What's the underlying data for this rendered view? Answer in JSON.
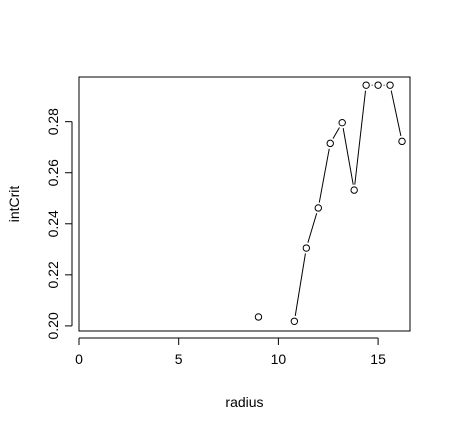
{
  "chart_data": {
    "type": "scatter",
    "title": "",
    "xlabel": "radius",
    "ylabel": "intCrit",
    "xlim": [
      0,
      16.6
    ],
    "ylim": [
      0.198,
      0.2975
    ],
    "xticks": [
      0,
      5,
      10,
      15
    ],
    "xtick_labels": [
      "0",
      "5",
      "10",
      "15"
    ],
    "yticks": [
      0.2,
      0.22,
      0.24,
      0.26,
      0.28
    ],
    "ytick_labels": [
      "0.20",
      "0.22",
      "0.24",
      "0.26",
      "0.28"
    ],
    "grid": false,
    "series": [
      {
        "marker": "open-circle",
        "x": [
          9.0,
          10.8,
          11.4,
          12.0,
          12.6,
          13.2,
          13.8,
          14.4,
          15.0,
          15.6,
          16.2
        ],
        "y": [
          0.2035,
          0.2018,
          0.2305,
          0.2462,
          0.2715,
          0.2796,
          0.2532,
          0.2943,
          0.2943,
          0.2943,
          0.2723
        ],
        "line_segments": [
          [
            1,
            10
          ]
        ]
      }
    ],
    "colors": {
      "line": "#000000",
      "marker_edge": "#000000",
      "marker_fill": "#ffffff",
      "box": "#000000"
    }
  }
}
